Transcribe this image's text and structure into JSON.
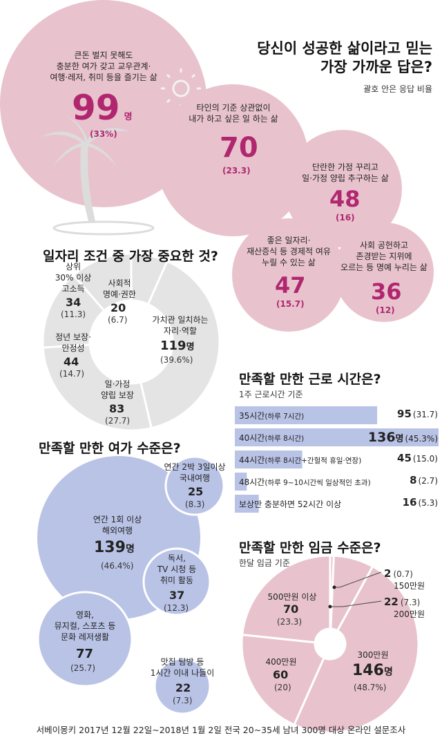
{
  "colors": {
    "pink": "#e8c3cd",
    "pink_label": "#b0276f",
    "blue": "#b9c3e6",
    "gray": "#e4e4e4",
    "line": "#444444"
  },
  "chart_data": [
    {
      "type": "bubble",
      "title": "당신이 성공한 삶이라고 믿는 가장 가까운 답은?",
      "subtitle": "괄호 안은 응답 비율",
      "items": [
        {
          "label": "큰돈 벌지 못해도 충분한 여가 갖고 교우관계·여행·레저, 취미 등을 즐기는 삶",
          "lines": [
            "큰돈 벌지 못해도",
            "충분한 여가 갖고 교우관계·",
            "여행·레저, 취미 등을 즐기는 삶"
          ],
          "value": 99,
          "unit": "명",
          "pct": "(33%)"
        },
        {
          "label": "타인의 기준 상관없이 내가 하고 싶은 일 하는 삶",
          "lines": [
            "타인의 기준 상관없이",
            "내가 하고 싶은 일 하는 삶"
          ],
          "value": 70,
          "pct": "(23.3)"
        },
        {
          "label": "단란한 가정 꾸리고 일·가정 양립 추구하는 삶",
          "lines": [
            "단란한 가정 꾸리고",
            "일·가정 양립 추구하는 삶"
          ],
          "value": 48,
          "pct": "(16)"
        },
        {
          "label": "좋은 일자리·재산증식 등 경제적 여유 누릴 수 있는 삶",
          "lines": [
            "좋은 일자리·",
            "재산증식 등 경제적 여유",
            "누릴 수 있는 삶"
          ],
          "value": 47,
          "pct": "(15.7)"
        },
        {
          "label": "사회 공헌하고 존경받는 지위에 오르는 등 명예 누리는 삶",
          "lines": [
            "사회 공헌하고",
            "존경받는 지위에",
            "오르는 등 명예 누리는 삶"
          ],
          "value": 36,
          "pct": "(12)"
        }
      ]
    },
    {
      "type": "pie",
      "title": "일자리 조건 중 가장 중요한 것?",
      "slices": [
        {
          "lines": [
            "가치관 일치하는",
            "자리·역할"
          ],
          "value": 119,
          "unit": "명",
          "pct": "(39.6%)"
        },
        {
          "lines": [
            "일·가정",
            "양립 보장"
          ],
          "value": 83,
          "pct": "(27.7)"
        },
        {
          "lines": [
            "정년 보장·",
            "안정성"
          ],
          "value": 44,
          "pct": "(14.7)"
        },
        {
          "lines": [
            "상위",
            "30% 이상",
            "고소득"
          ],
          "value": 34,
          "pct": "(11.3)"
        },
        {
          "lines": [
            "사회적",
            "명예·권한"
          ],
          "value": 20,
          "pct": "(6.7)"
        }
      ]
    },
    {
      "type": "bar",
      "title": "만족할 만한 근로 시간은?",
      "subtitle": "1주 근로시간 기준",
      "bars": [
        {
          "main": "35시간",
          "note": "(하루 7시간)",
          "value": 95,
          "pct": "(31.7)"
        },
        {
          "main": "40시간",
          "note": "(하루 8시간)",
          "value": 136,
          "unit": "명",
          "pct": "(45.3%)"
        },
        {
          "main": "44시간",
          "note": "(하루 8시간+간헐적 휴일·연장)",
          "value": 45,
          "pct": "(15.0)"
        },
        {
          "main": "48시간",
          "note": "(하루 9~10시간씩 일상적인 초과)",
          "value": 8,
          "pct": "(2.7)"
        },
        {
          "main": "보상만 충분하면 52시간 이상",
          "note": "",
          "value": 16,
          "pct": "(5.3)"
        }
      ]
    },
    {
      "type": "bubble",
      "title": "만족할 만한 여가 수준은?",
      "items": [
        {
          "lines": [
            "연간 1회 이상",
            "해외여행"
          ],
          "value": 139,
          "unit": "명",
          "pct": "(46.4%)"
        },
        {
          "lines": [
            "영화,",
            "뮤지컬, 스포츠 등",
            "문화 레저생활"
          ],
          "value": 77,
          "pct": "(25.7)"
        },
        {
          "lines": [
            "독서,",
            "TV 시청 등",
            "취미 활동"
          ],
          "value": 37,
          "pct": "(12.3)"
        },
        {
          "lines": [
            "연간 2박 3일이상",
            "국내여행"
          ],
          "value": 25,
          "pct": "(8.3)"
        },
        {
          "lines": [
            "맛집 탐방 등",
            "1시간 이내 나들이"
          ],
          "value": 22,
          "pct": "(7.3)"
        }
      ]
    },
    {
      "type": "pie",
      "title": "만족할 만한 임금 수준은?",
      "subtitle": "한달 임금 기준",
      "slices": [
        {
          "label": "300만원",
          "value": 146,
          "unit": "명",
          "pct": "(48.7%)"
        },
        {
          "label": "400만원",
          "value": 60,
          "pct": "(20)"
        },
        {
          "label": "500만원 이상",
          "value": 70,
          "pct": "(23.3)"
        },
        {
          "label": "150만원",
          "value": 2,
          "pct": "(0.7)"
        },
        {
          "label": "200만원",
          "value": 22,
          "pct": "(7.3)"
        }
      ]
    }
  ],
  "footer": "서베이몽키 2017년 12월 22일~2018년 1월 2일 전국 20~35세 남녀 300명 대상 온라인 설문조사"
}
